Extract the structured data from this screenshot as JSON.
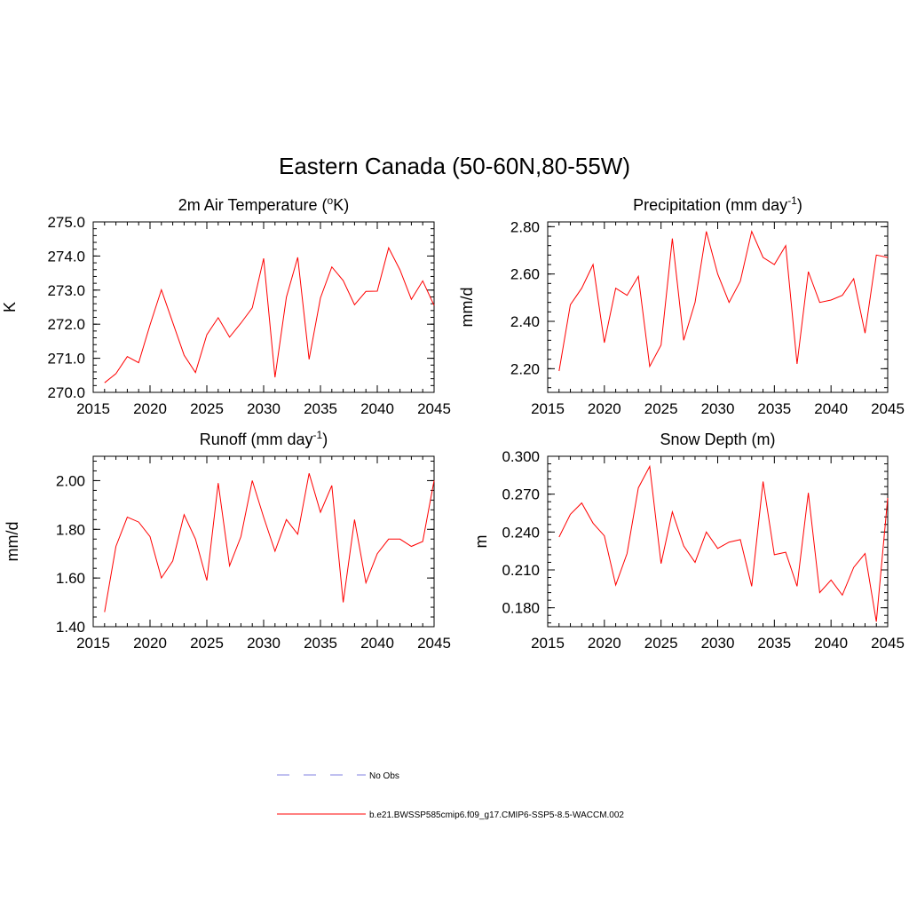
{
  "figure_title": "Eastern Canada (50-60N,80-55W)",
  "colors": {
    "model_line": "#ff0000",
    "obs_line": "#9a9ae6",
    "axis": "#000000"
  },
  "legend": {
    "obs_label": "No Obs",
    "model_label": "b.e21.BWSSP585cmip6.f09_g17.CMIP6-SSP5-8.5-WACCM.002"
  },
  "chart_data": [
    {
      "type": "line",
      "id": "tas",
      "title": "2m Air Temperature (°K)",
      "title_parts": [
        "2m Air Temperature (",
        "o",
        "K)"
      ],
      "ylabel": "K",
      "xlim": [
        2015,
        2045
      ],
      "ylim": [
        270.0,
        275.0
      ],
      "xticks": [
        2015,
        2020,
        2025,
        2030,
        2035,
        2040,
        2045
      ],
      "yticks": [
        "270.0",
        "271.0",
        "272.0",
        "273.0",
        "274.0",
        "275.0"
      ],
      "x": [
        2016,
        2017,
        2018,
        2019,
        2020,
        2021,
        2022,
        2023,
        2024,
        2025,
        2026,
        2027,
        2028,
        2029,
        2030,
        2031,
        2032,
        2033,
        2034,
        2035,
        2036,
        2037,
        2038,
        2039,
        2040,
        2041,
        2042,
        2043,
        2044,
        2045
      ],
      "values": [
        270.28,
        270.55,
        271.05,
        270.87,
        271.98,
        273.01,
        272.05,
        271.09,
        270.58,
        271.69,
        272.19,
        271.62,
        272.03,
        272.48,
        273.93,
        270.44,
        272.79,
        273.96,
        270.97,
        272.77,
        273.68,
        273.28,
        272.57,
        272.96,
        272.97,
        274.24,
        273.59,
        272.73,
        273.27,
        272.55
      ],
      "series": [
        {
          "name": "b.e21.BWSSP585cmip6.f09_g17.CMIP6-SSP5-8.5-WACCM.002"
        }
      ]
    },
    {
      "type": "line",
      "id": "precip",
      "title": "Precipitation (mm day-1)",
      "title_parts": [
        "Precipitation (mm day",
        "-1",
        ")"
      ],
      "ylabel": "mm/d",
      "xlim": [
        2015,
        2045
      ],
      "ylim": [
        2.1,
        2.82
      ],
      "xticks": [
        2015,
        2020,
        2025,
        2030,
        2035,
        2040,
        2045
      ],
      "yticks": [
        "2.20",
        "2.40",
        "2.60",
        "2.80"
      ],
      "x": [
        2016,
        2017,
        2018,
        2019,
        2020,
        2021,
        2022,
        2023,
        2024,
        2025,
        2026,
        2027,
        2028,
        2029,
        2030,
        2031,
        2032,
        2033,
        2034,
        2035,
        2036,
        2037,
        2038,
        2039,
        2040,
        2041,
        2042,
        2043,
        2044,
        2045
      ],
      "values": [
        2.19,
        2.47,
        2.54,
        2.64,
        2.31,
        2.54,
        2.51,
        2.59,
        2.21,
        2.3,
        2.75,
        2.32,
        2.48,
        2.78,
        2.6,
        2.48,
        2.57,
        2.78,
        2.67,
        2.64,
        2.72,
        2.22,
        2.61,
        2.48,
        2.49,
        2.51,
        2.58,
        2.35,
        2.68,
        2.67
      ],
      "series": [
        {
          "name": "b.e21.BWSSP585cmip6.f09_g17.CMIP6-SSP5-8.5-WACCM.002"
        }
      ]
    },
    {
      "type": "line",
      "id": "runoff",
      "title": "Runoff (mm day-1)",
      "title_parts": [
        "Runoff (mm day",
        "-1",
        ")"
      ],
      "ylabel": "mm/d",
      "xlim": [
        2015,
        2045
      ],
      "ylim": [
        1.4,
        2.1
      ],
      "xticks": [
        2015,
        2020,
        2025,
        2030,
        2035,
        2040,
        2045
      ],
      "yticks": [
        "1.40",
        "1.60",
        "1.80",
        "2.00"
      ],
      "x": [
        2016,
        2017,
        2018,
        2019,
        2020,
        2021,
        2022,
        2023,
        2024,
        2025,
        2026,
        2027,
        2028,
        2029,
        2030,
        2031,
        2032,
        2033,
        2034,
        2035,
        2036,
        2037,
        2038,
        2039,
        2040,
        2041,
        2042,
        2043,
        2044,
        2045
      ],
      "values": [
        1.46,
        1.73,
        1.85,
        1.83,
        1.77,
        1.6,
        1.67,
        1.86,
        1.76,
        1.59,
        1.99,
        1.65,
        1.77,
        2.0,
        1.85,
        1.71,
        1.84,
        1.78,
        2.03,
        1.87,
        1.98,
        1.5,
        1.84,
        1.58,
        1.7,
        1.76,
        1.76,
        1.73,
        1.75,
        2.0
      ],
      "series": [
        {
          "name": "b.e21.BWSSP585cmip6.f09_g17.CMIP6-SSP5-8.5-WACCM.002"
        }
      ]
    },
    {
      "type": "line",
      "id": "snowdepth",
      "title": "Snow Depth (m)",
      "title_parts": [
        "Snow Depth (m)",
        "",
        ""
      ],
      "ylabel": "m",
      "xlim": [
        2015,
        2045
      ],
      "ylim": [
        0.165,
        0.3
      ],
      "xticks": [
        2015,
        2020,
        2025,
        2030,
        2035,
        2040,
        2045
      ],
      "yticks": [
        "0.180",
        "0.210",
        "0.240",
        "0.270",
        "0.300"
      ],
      "x": [
        2016,
        2017,
        2018,
        2019,
        2020,
        2021,
        2022,
        2023,
        2024,
        2025,
        2026,
        2027,
        2028,
        2029,
        2030,
        2031,
        2032,
        2033,
        2034,
        2035,
        2036,
        2037,
        2038,
        2039,
        2040,
        2041,
        2042,
        2043,
        2044,
        2045
      ],
      "values": [
        0.236,
        0.254,
        0.263,
        0.247,
        0.237,
        0.198,
        0.223,
        0.275,
        0.292,
        0.215,
        0.256,
        0.229,
        0.216,
        0.24,
        0.227,
        0.232,
        0.234,
        0.197,
        0.28,
        0.222,
        0.224,
        0.197,
        0.271,
        0.192,
        0.202,
        0.19,
        0.212,
        0.223,
        0.169,
        0.267
      ],
      "series": [
        {
          "name": "b.e21.BWSSP585cmip6.f09_g17.CMIP6-SSP5-8.5-WACCM.002"
        }
      ]
    }
  ]
}
